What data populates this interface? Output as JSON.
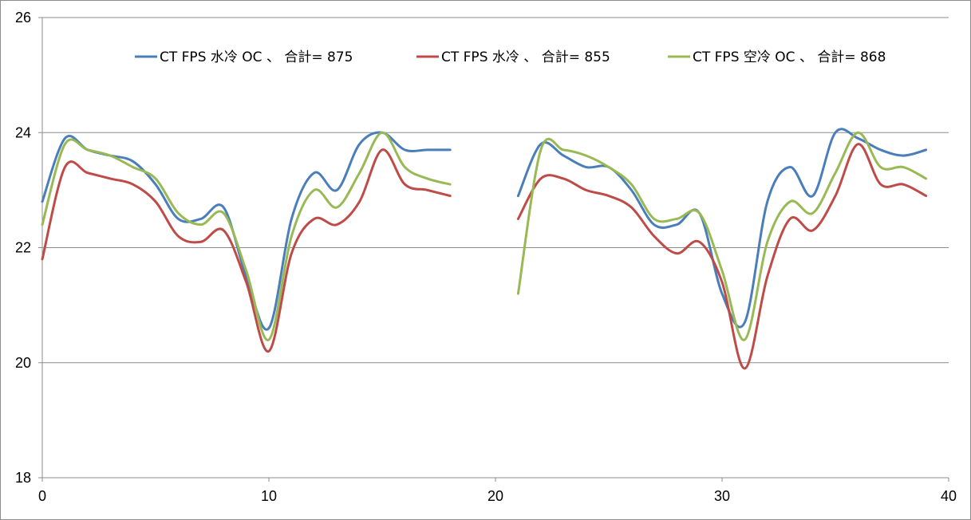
{
  "chart_data": {
    "type": "line",
    "title": "",
    "xlabel": "",
    "ylabel": "",
    "xlim": [
      0,
      40
    ],
    "ylim": [
      18,
      26
    ],
    "x_ticks": [
      0,
      10,
      20,
      30,
      40
    ],
    "y_ticks": [
      18,
      20,
      22,
      24,
      26
    ],
    "grid": "horizontal",
    "legend_position": "top",
    "smooth": true,
    "series": [
      {
        "name": "CT FPS 水冷 OC 、 合計= 875",
        "color": "#4a7ebb",
        "segments": [
          {
            "x": [
              0,
              1,
              2,
              3,
              4,
              5,
              6,
              7,
              8,
              9,
              10,
              11,
              12,
              13,
              14,
              15,
              16,
              17,
              18
            ],
            "y": [
              22.8,
              23.9,
              23.7,
              23.6,
              23.5,
              23.1,
              22.5,
              22.5,
              22.7,
              21.5,
              20.6,
              22.5,
              23.3,
              23.0,
              23.8,
              24.0,
              23.7,
              23.7,
              23.7
            ]
          },
          {
            "x": [
              21,
              22,
              23,
              24,
              25,
              26,
              27,
              28,
              29,
              30,
              31,
              32,
              33,
              34,
              35,
              36,
              37,
              38,
              39
            ],
            "y": [
              22.9,
              23.8,
              23.6,
              23.4,
              23.4,
              23.0,
              22.4,
              22.4,
              22.6,
              21.2,
              20.7,
              22.8,
              23.4,
              22.9,
              24.0,
              23.9,
              23.7,
              23.6,
              23.7
            ]
          }
        ]
      },
      {
        "name": "CT FPS 水冷 、 合計= 855",
        "color": "#be4b48",
        "segments": [
          {
            "x": [
              0,
              1,
              2,
              3,
              4,
              5,
              6,
              7,
              8,
              9,
              10,
              11,
              12,
              13,
              14,
              15,
              16,
              17,
              18
            ],
            "y": [
              21.8,
              23.4,
              23.3,
              23.2,
              23.1,
              22.8,
              22.2,
              22.1,
              22.3,
              21.4,
              20.2,
              21.9,
              22.5,
              22.4,
              22.8,
              23.7,
              23.1,
              23.0,
              22.9
            ]
          },
          {
            "x": [
              21,
              22,
              23,
              24,
              25,
              26,
              27,
              28,
              29,
              30,
              31,
              32,
              33,
              34,
              35,
              36,
              37,
              38,
              39
            ],
            "y": [
              22.5,
              23.2,
              23.2,
              23.0,
              22.9,
              22.7,
              22.2,
              21.9,
              22.1,
              21.4,
              19.9,
              21.5,
              22.5,
              22.3,
              22.9,
              23.8,
              23.1,
              23.1,
              22.9
            ]
          }
        ]
      },
      {
        "name": "CT FPS 空冷 OC 、 合計= 868",
        "color": "#98b954",
        "segments": [
          {
            "x": [
              0,
              1,
              2,
              3,
              4,
              5,
              6,
              7,
              8,
              9,
              10,
              11,
              12,
              13,
              14,
              15,
              16,
              17,
              18
            ],
            "y": [
              22.4,
              23.8,
              23.7,
              23.6,
              23.4,
              23.2,
              22.6,
              22.4,
              22.6,
              21.6,
              20.4,
              22.2,
              23.0,
              22.7,
              23.3,
              24.0,
              23.4,
              23.2,
              23.1
            ]
          },
          {
            "x": [
              21,
              22,
              23,
              24,
              25,
              26,
              27,
              28,
              29,
              30,
              31,
              32,
              33,
              34,
              35,
              36,
              37,
              38,
              39
            ],
            "y": [
              21.2,
              23.7,
              23.7,
              23.6,
              23.4,
              23.1,
              22.5,
              22.5,
              22.6,
              21.6,
              20.4,
              22.1,
              22.8,
              22.6,
              23.3,
              24.0,
              23.4,
              23.4,
              23.2
            ]
          }
        ]
      }
    ]
  }
}
